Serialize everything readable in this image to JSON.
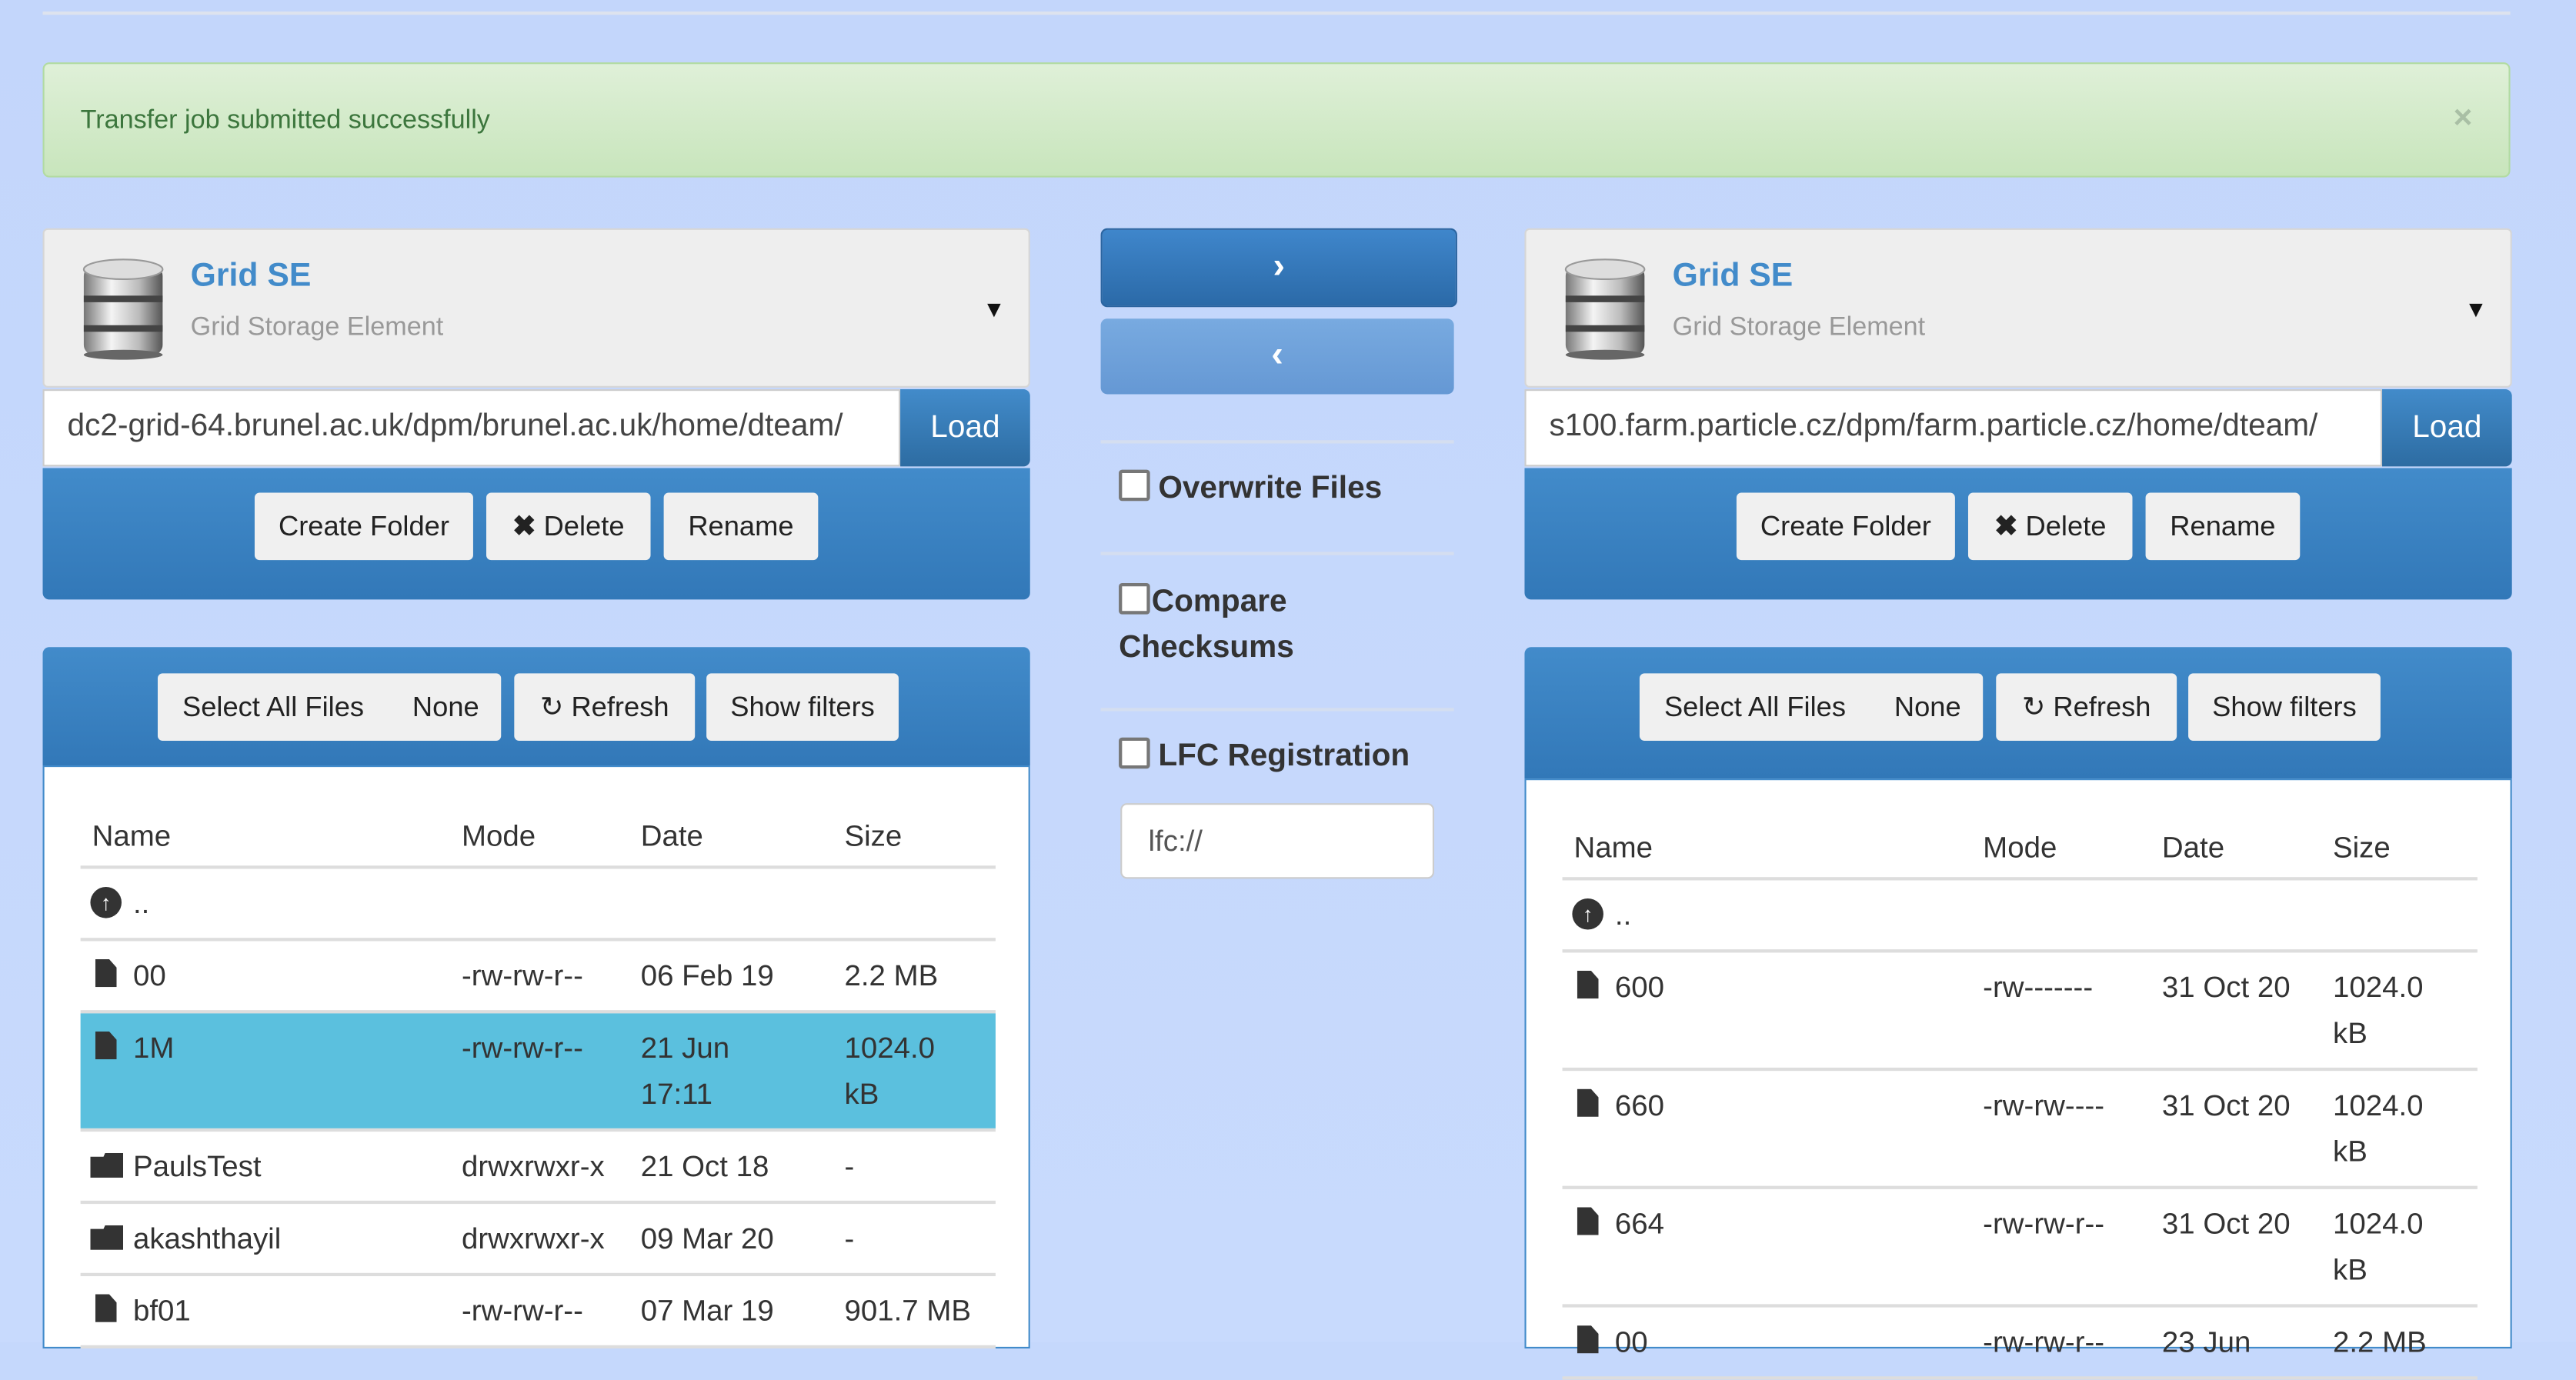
{
  "alert": {
    "message": "Transfer job submitted successfully",
    "close": "×"
  },
  "colors": {
    "accent": "#428bca",
    "highlight": "#5bc0de",
    "success_text": "#3c763d",
    "background": "#c5d8fc"
  },
  "left": {
    "endpoint": {
      "title": "Grid SE",
      "subtitle": "Grid Storage Element",
      "icon": "database-icon"
    },
    "path": "dc2-grid-64.brunel.ac.uk/dpm/brunel.ac.uk/home/dteam/",
    "load": "Load",
    "actions": {
      "create_folder": "Create Folder",
      "delete": "Delete",
      "rename": "Rename"
    },
    "list_actions": {
      "select_all": "Select All Files",
      "none": "None",
      "refresh": "Refresh",
      "show_filters": "Show filters"
    },
    "columns": [
      "Name",
      "Mode",
      "Date",
      "Size"
    ],
    "rows": [
      {
        "type": "up",
        "name": "..",
        "mode": "",
        "date": "",
        "size": ""
      },
      {
        "type": "file",
        "name": "00",
        "mode": "-rw-rw-r--",
        "date": "06 Feb 19",
        "size": "2.2 MB"
      },
      {
        "type": "file",
        "name": "1M",
        "mode": "-rw-rw-r--",
        "date": "21 Jun 17:11",
        "size": "1024.0 kB",
        "selected": true
      },
      {
        "type": "folder",
        "name": "PaulsTest",
        "mode": "drwxrwxr-x",
        "date": "21 Oct 18",
        "size": "-"
      },
      {
        "type": "folder",
        "name": "akashthayil",
        "mode": "drwxrwxr-x",
        "date": "09 Mar 20",
        "size": "-"
      },
      {
        "type": "file",
        "name": "bf01",
        "mode": "-rw-rw-r--",
        "date": "07 Mar 19",
        "size": "901.7 MB"
      }
    ]
  },
  "middle": {
    "transfer_right": "›",
    "transfer_left": "‹",
    "overwrite": {
      "label": "Overwrite Files",
      "checked": false
    },
    "compare": {
      "label": "Compare Checksums",
      "checked": false
    },
    "lfc": {
      "label": "LFC Registration",
      "checked": false,
      "placeholder": "lfc://"
    }
  },
  "right": {
    "endpoint": {
      "title": "Grid SE",
      "subtitle": "Grid Storage Element",
      "icon": "database-icon"
    },
    "path": "s100.farm.particle.cz/dpm/farm.particle.cz/home/dteam/",
    "load": "Load",
    "actions": {
      "create_folder": "Create Folder",
      "delete": "Delete",
      "rename": "Rename"
    },
    "list_actions": {
      "select_all": "Select All Files",
      "none": "None",
      "refresh": "Refresh",
      "show_filters": "Show filters"
    },
    "columns": [
      "Name",
      "Mode",
      "Date",
      "Size"
    ],
    "rows": [
      {
        "type": "up",
        "name": "..",
        "mode": "",
        "date": "",
        "size": ""
      },
      {
        "type": "file",
        "name": "600",
        "mode": "-rw-------",
        "date": "31 Oct 20",
        "size": "1024.0 kB"
      },
      {
        "type": "file",
        "name": "660",
        "mode": "-rw-rw----",
        "date": "31 Oct 20",
        "size": "1024.0 kB"
      },
      {
        "type": "file",
        "name": "664",
        "mode": "-rw-rw-r--",
        "date": "31 Oct 20",
        "size": "1024.0 kB"
      },
      {
        "type": "file",
        "name": "00",
        "mode": "-rw-rw-r--",
        "date": "23 Jun",
        "size": "2.2 MB"
      }
    ]
  }
}
